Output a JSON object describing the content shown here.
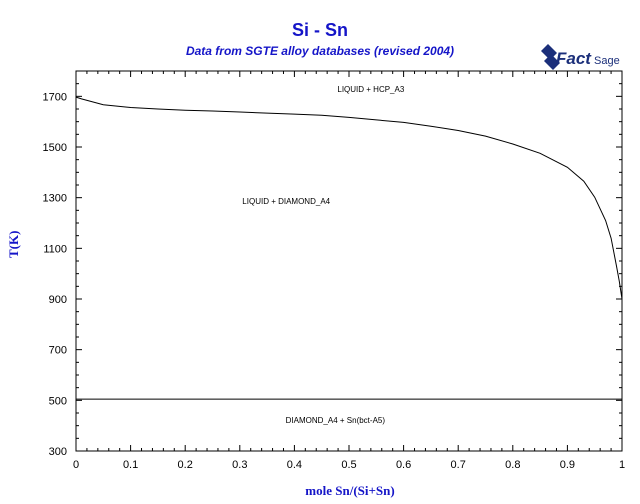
{
  "chart_data": {
    "type": "line",
    "title": "Si - Sn",
    "subtitle": "Data from SGTE alloy databases (revised 2004)",
    "logo_text": {
      "part1": "Fact",
      "part2": "Sage"
    },
    "xlabel": "mole Sn/(Si+Sn)",
    "ylabel": "T(K)",
    "xlim": [
      0,
      1
    ],
    "ylim": [
      300,
      1800
    ],
    "x_ticks": [
      0,
      0.1,
      0.2,
      0.3,
      0.4,
      0.5,
      0.6,
      0.7,
      0.8,
      0.9,
      1
    ],
    "x_tick_labels": [
      "0",
      "0.1",
      "0.2",
      "0.3",
      "0.4",
      "0.5",
      "0.6",
      "0.7",
      "0.8",
      "0.9",
      "1"
    ],
    "y_ticks": [
      300,
      500,
      700,
      900,
      1100,
      1300,
      1500,
      1700
    ],
    "y_tick_labels": [
      "300",
      "500",
      "700",
      "900",
      "1100",
      "1300",
      "1500",
      "1700"
    ],
    "grid": false,
    "series": [
      {
        "values": [
          [
            0,
            1697
          ],
          [
            0.01,
            1690
          ],
          [
            0.05,
            1667
          ],
          [
            0.1,
            1656
          ],
          [
            0.15,
            1650
          ],
          [
            0.2,
            1645
          ],
          [
            0.25,
            1642
          ],
          [
            0.3,
            1638
          ],
          [
            0.35,
            1634
          ],
          [
            0.4,
            1630
          ],
          [
            0.45,
            1625
          ],
          [
            0.5,
            1617
          ],
          [
            0.55,
            1607
          ],
          [
            0.6,
            1597
          ],
          [
            0.65,
            1582
          ],
          [
            0.7,
            1565
          ],
          [
            0.75,
            1543
          ],
          [
            0.8,
            1512
          ],
          [
            0.85,
            1475
          ],
          [
            0.9,
            1420
          ],
          [
            0.93,
            1365
          ],
          [
            0.95,
            1302
          ],
          [
            0.97,
            1210
          ],
          [
            0.98,
            1140
          ],
          [
            0.99,
            1030
          ],
          [
            0.995,
            970
          ],
          [
            1,
            900
          ]
        ]
      },
      {
        "values": [
          [
            0,
            1330
          ],
          [
            0,
            1640
          ]
        ]
      },
      {
        "values": [
          [
            0,
            505
          ],
          [
            1,
            505
          ]
        ]
      }
    ],
    "annotations": [
      {
        "text": "LIQUID + HCP_A3",
        "x": 0.54,
        "y": 1717
      },
      {
        "text": "LIQUID + DIAMOND_A4",
        "x": 0.385,
        "y": 1275
      },
      {
        "text": "DIAMOND_A4 + Sn(bct-A5)",
        "x": 0.475,
        "y": 411
      }
    ],
    "line_color": "#000000",
    "text_color": "#1515c8"
  }
}
